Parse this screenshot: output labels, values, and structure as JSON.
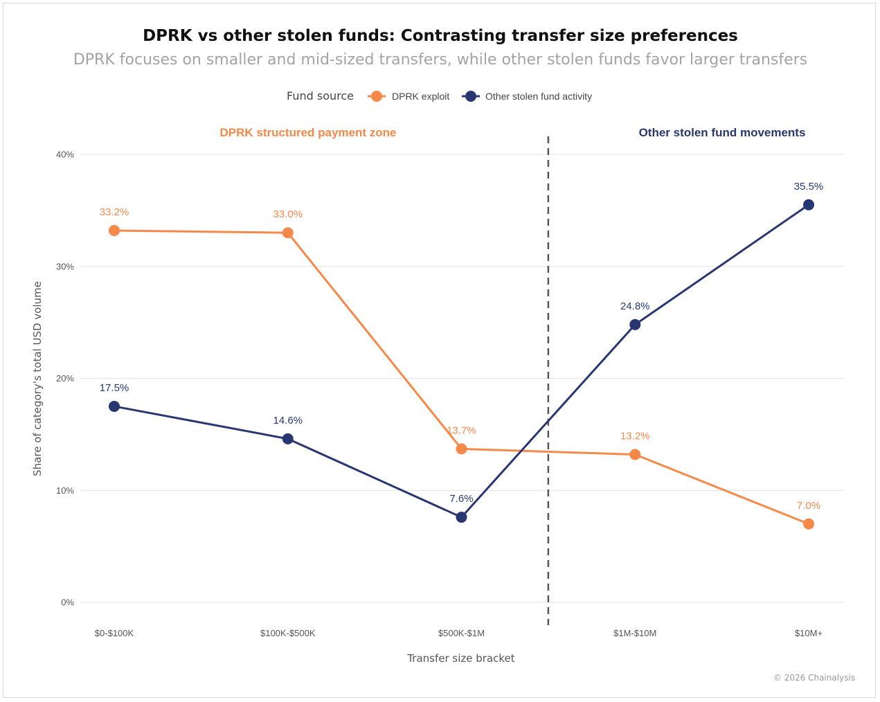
{
  "title": "DPRK vs other stolen funds: Contrasting transfer size preferences",
  "subtitle": "DPRK focuses on smaller and mid-sized transfers, while other stolen funds favor larger transfers",
  "legend": {
    "title": "Fund source",
    "placement": "top-center"
  },
  "zones": {
    "left_label": "DPRK structured payment zone",
    "right_label": "Other stolen fund movements",
    "divider_after_category": "$500K-$1M"
  },
  "footer": "© 2026 Chainalysis",
  "colors": {
    "dprk": "#f5894a",
    "other": "#283772",
    "grid": "#e4e4e4",
    "divider": "#555555"
  },
  "chart_data": {
    "type": "line",
    "categories": [
      "$0-$100K",
      "$100K-$500K",
      "$500K-$1M",
      "$1M-$10M",
      "$10M+"
    ],
    "series": [
      {
        "name": "DPRK exploit",
        "values": [
          33.2,
          33.0,
          13.7,
          13.2,
          7.0
        ],
        "labels": [
          "33.2%",
          "33.0%",
          "13.7%",
          "13.2%",
          "7.0%"
        ]
      },
      {
        "name": "Other stolen fund activity",
        "values": [
          17.5,
          14.6,
          7.6,
          24.8,
          35.5
        ],
        "labels": [
          "17.5%",
          "14.6%",
          "7.6%",
          "24.8%",
          "35.5%"
        ]
      }
    ],
    "xlabel": "Transfer size bracket",
    "ylabel": "Share of category's total USD volume",
    "ylim": [
      0,
      40
    ],
    "yticks": [
      0,
      10,
      20,
      30,
      40
    ],
    "ytick_labels": [
      "0%",
      "10%",
      "20%",
      "30%",
      "40%"
    ],
    "grid": true
  }
}
